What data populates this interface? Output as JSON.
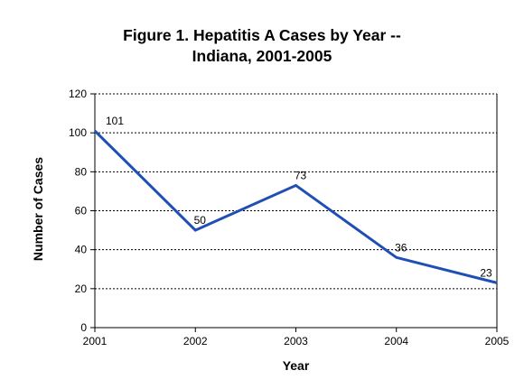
{
  "chart_data": {
    "type": "line",
    "title_line1": "Figure 1.  Hepatitis A Cases by Year --",
    "title_line2": "Indiana, 2001-2005",
    "xlabel": "Year",
    "ylabel": "Number of Cases",
    "x": [
      "2001",
      "2002",
      "2003",
      "2004",
      "2005"
    ],
    "values": [
      101,
      50,
      73,
      36,
      23
    ],
    "ylim": [
      0,
      120
    ],
    "yticks": [
      0,
      20,
      40,
      60,
      80,
      100,
      120
    ],
    "grid": "horizontal-dotted",
    "line_color": "#1f4fb4"
  }
}
